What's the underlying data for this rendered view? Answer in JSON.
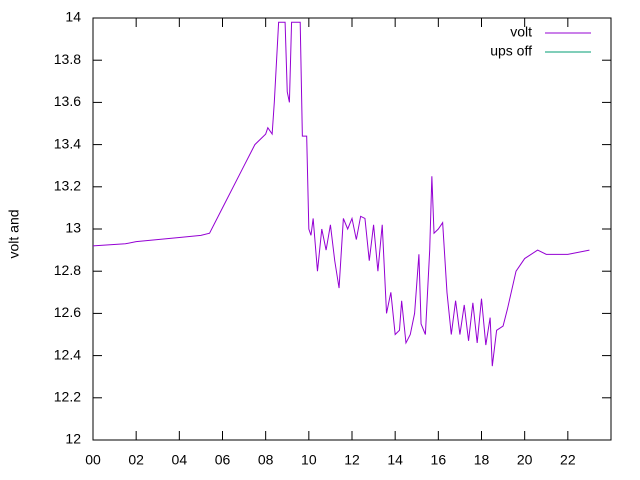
{
  "chart_data": {
    "type": "line",
    "ylabel": "volt and",
    "xlim": [
      0,
      24
    ],
    "xticks": [
      {
        "value": 0,
        "label": "00"
      },
      {
        "value": 2,
        "label": "02"
      },
      {
        "value": 4,
        "label": "04"
      },
      {
        "value": 6,
        "label": "06"
      },
      {
        "value": 8,
        "label": "08"
      },
      {
        "value": 10,
        "label": "10"
      },
      {
        "value": 12,
        "label": "12"
      },
      {
        "value": 14,
        "label": "14"
      },
      {
        "value": 16,
        "label": "16"
      },
      {
        "value": 18,
        "label": "18"
      },
      {
        "value": 20,
        "label": "20"
      },
      {
        "value": 22,
        "label": "22"
      }
    ],
    "ylim": [
      12,
      14
    ],
    "yticks": [
      12,
      12.2,
      12.4,
      12.6,
      12.8,
      13,
      13.2,
      13.4,
      13.6,
      13.8,
      14
    ],
    "legend": "top-right",
    "x": [
      0,
      1.5,
      2,
      4,
      5,
      5.4,
      6,
      7,
      7.5,
      8,
      8.1,
      8.3,
      8.4,
      8.6,
      8.9,
      9.0,
      9.1,
      9.2,
      9.6,
      9.7,
      9.9,
      10.0,
      10.1,
      10.2,
      10.4,
      10.6,
      10.8,
      11.0,
      11.2,
      11.4,
      11.6,
      11.8,
      12.0,
      12.2,
      12.4,
      12.6,
      12.8,
      13.0,
      13.2,
      13.4,
      13.6,
      13.8,
      14.0,
      14.2,
      14.3,
      14.5,
      14.7,
      14.9,
      15.1,
      15.2,
      15.4,
      15.6,
      15.7,
      15.8,
      16.0,
      16.2,
      16.4,
      16.6,
      16.8,
      17.0,
      17.2,
      17.4,
      17.6,
      17.8,
      18.0,
      18.2,
      18.4,
      18.5,
      18.7,
      19.0,
      19.2,
      19.6,
      20.0,
      20.6,
      21.0,
      22.0,
      22.5,
      23.0
    ],
    "series": [
      {
        "name": "volt",
        "color": "#9400d3",
        "values": [
          12.92,
          12.93,
          12.94,
          12.96,
          12.97,
          12.98,
          13.1,
          13.3,
          13.4,
          13.45,
          13.48,
          13.45,
          13.6,
          13.98,
          13.98,
          13.65,
          13.6,
          13.98,
          13.98,
          13.44,
          13.44,
          13.0,
          12.97,
          13.05,
          12.8,
          13.0,
          12.9,
          13.02,
          12.85,
          12.72,
          13.05,
          13.0,
          13.05,
          12.95,
          13.06,
          13.05,
          12.85,
          13.02,
          12.8,
          13.02,
          12.6,
          12.7,
          12.5,
          12.52,
          12.66,
          12.46,
          12.5,
          12.6,
          12.88,
          12.55,
          12.5,
          12.9,
          13.25,
          12.98,
          13.0,
          13.03,
          12.7,
          12.5,
          12.66,
          12.5,
          12.64,
          12.47,
          12.65,
          12.46,
          12.67,
          12.45,
          12.58,
          12.35,
          12.52,
          12.54,
          12.62,
          12.8,
          12.86,
          12.9,
          12.88,
          12.88,
          12.89,
          12.9
        ]
      },
      {
        "name": "ups off",
        "color": "#009e73",
        "values": [
          null,
          null,
          null,
          null,
          null,
          null,
          null,
          null,
          null,
          null,
          null,
          null,
          null,
          null,
          null,
          null,
          null,
          null,
          null,
          null,
          null,
          null,
          null,
          null,
          null,
          null,
          null,
          null,
          null,
          null,
          null,
          null,
          null,
          null,
          null,
          null,
          null,
          null,
          null,
          null,
          null,
          null,
          null,
          null,
          null,
          null,
          null,
          null,
          null,
          null,
          null,
          null,
          null,
          null,
          null,
          null,
          null,
          null,
          null,
          null,
          null,
          null,
          null,
          null,
          null,
          null,
          null,
          null,
          null,
          null,
          null,
          null,
          null,
          null,
          null,
          null,
          null,
          null
        ]
      }
    ]
  }
}
